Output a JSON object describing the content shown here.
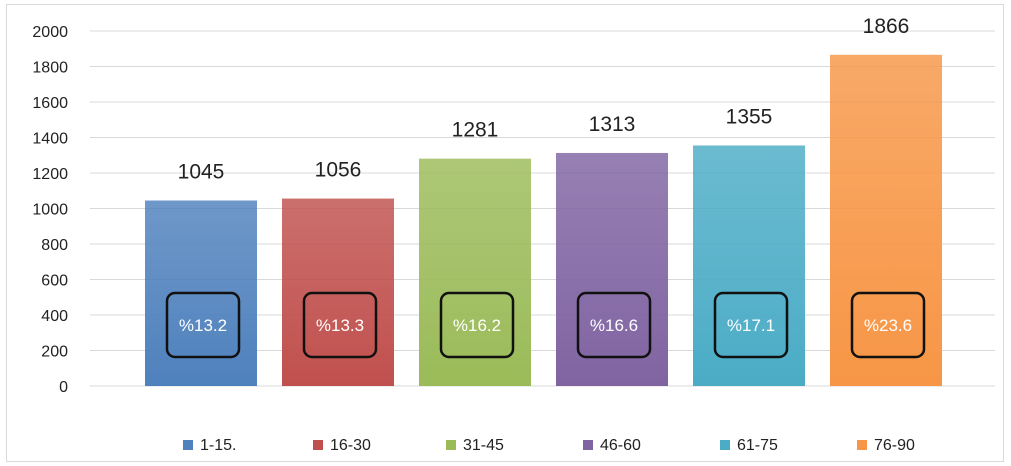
{
  "chart_data": {
    "type": "bar",
    "categories": [
      "1-15.",
      "16-30",
      "31-45",
      "46-60",
      "61-75",
      "76-90"
    ],
    "values": [
      1045,
      1056,
      1281,
      1313,
      1355,
      1866
    ],
    "percent_labels": [
      "%13.2",
      "%13.3",
      "%16.2",
      "%16.6",
      "%17.1",
      "%23.6"
    ],
    "colors": [
      "#4f81bd",
      "#c0504d",
      "#9bbb59",
      "#8064a2",
      "#4bacc6",
      "#f79646"
    ],
    "ylim": [
      0,
      2000
    ],
    "yticks": [
      0,
      200,
      400,
      600,
      800,
      1000,
      1200,
      1400,
      1600,
      1800,
      2000
    ],
    "grid": true,
    "legend": "bottom",
    "title": "",
    "xlabel": "",
    "ylabel": ""
  }
}
